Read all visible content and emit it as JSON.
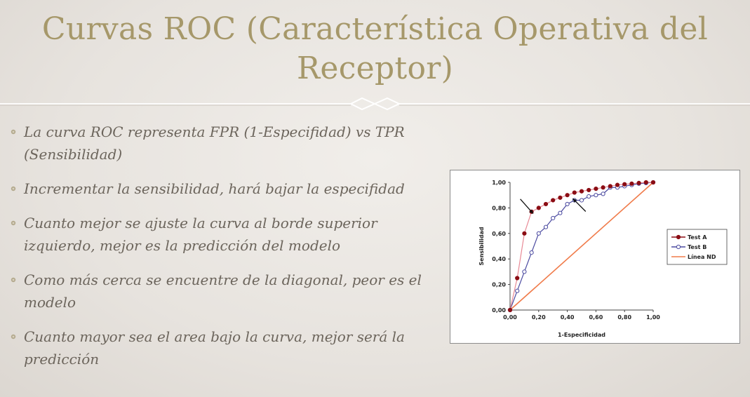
{
  "slide": {
    "title": "Curvas ROC (Característica Operativa del Receptor)",
    "bullets": [
      "La curva ROC representa FPR (1-Especifidad) vs TPR (Sensibilidad)",
      "Incrementar la sensibilidad, hará bajar la especifidad",
      "Cuanto mejor se ajuste la curva al borde superior izquierdo, mejor es la predicción del modelo",
      "Como más cerca se encuentre de la diagonal, peor es el modelo",
      "Cuanto mayor sea el area bajo la curva, mejor será la predicción"
    ]
  },
  "colors": {
    "title": "#a6986a",
    "text": "#6c655c",
    "test_a": "#8b0d14",
    "test_a_line": "#e88a96",
    "test_b": "#4b4aa0",
    "linea_nd": "#f07b4a"
  },
  "chart_data": {
    "type": "line",
    "title": "",
    "xlabel": "1-Especificidad",
    "ylabel": "Sensibilidad",
    "xlim": [
      0,
      1
    ],
    "ylim": [
      0,
      1
    ],
    "x_ticks": [
      "0,00",
      "0,20",
      "0,40",
      "0,60",
      "0,80",
      "1,00"
    ],
    "y_ticks": [
      "0,00",
      "0,20",
      "0,40",
      "0,60",
      "0,80",
      "1,00"
    ],
    "grid": false,
    "legend_position": "right",
    "series": [
      {
        "name": "Test A",
        "marker": "filled-circle",
        "x": [
          0,
          0.05,
          0.1,
          0.15,
          0.2,
          0.25,
          0.3,
          0.35,
          0.4,
          0.45,
          0.5,
          0.55,
          0.6,
          0.65,
          0.7,
          0.75,
          0.8,
          0.85,
          0.9,
          0.95,
          1.0
        ],
        "y": [
          0,
          0.25,
          0.6,
          0.77,
          0.8,
          0.83,
          0.86,
          0.88,
          0.9,
          0.92,
          0.93,
          0.94,
          0.95,
          0.96,
          0.97,
          0.98,
          0.985,
          0.99,
          0.995,
          1.0,
          1.0
        ]
      },
      {
        "name": "Test B",
        "marker": "open-circle",
        "x": [
          0,
          0.05,
          0.1,
          0.15,
          0.2,
          0.25,
          0.3,
          0.35,
          0.4,
          0.45,
          0.5,
          0.55,
          0.6,
          0.65,
          0.7,
          0.75,
          0.8,
          0.85,
          0.9,
          0.95,
          1.0
        ],
        "y": [
          0,
          0.15,
          0.3,
          0.45,
          0.6,
          0.65,
          0.72,
          0.76,
          0.83,
          0.86,
          0.86,
          0.89,
          0.9,
          0.91,
          0.96,
          0.96,
          0.97,
          0.98,
          0.99,
          0.995,
          1.0
        ]
      },
      {
        "name": "Línea ND",
        "marker": "none",
        "x": [
          0,
          1
        ],
        "y": [
          0,
          1
        ]
      }
    ],
    "annotations": [
      {
        "type": "arrow",
        "target_series": "Test A",
        "target": [
          0.15,
          0.77
        ]
      },
      {
        "type": "arrow",
        "target_series": "Test B",
        "target": [
          0.45,
          0.86
        ]
      }
    ]
  }
}
